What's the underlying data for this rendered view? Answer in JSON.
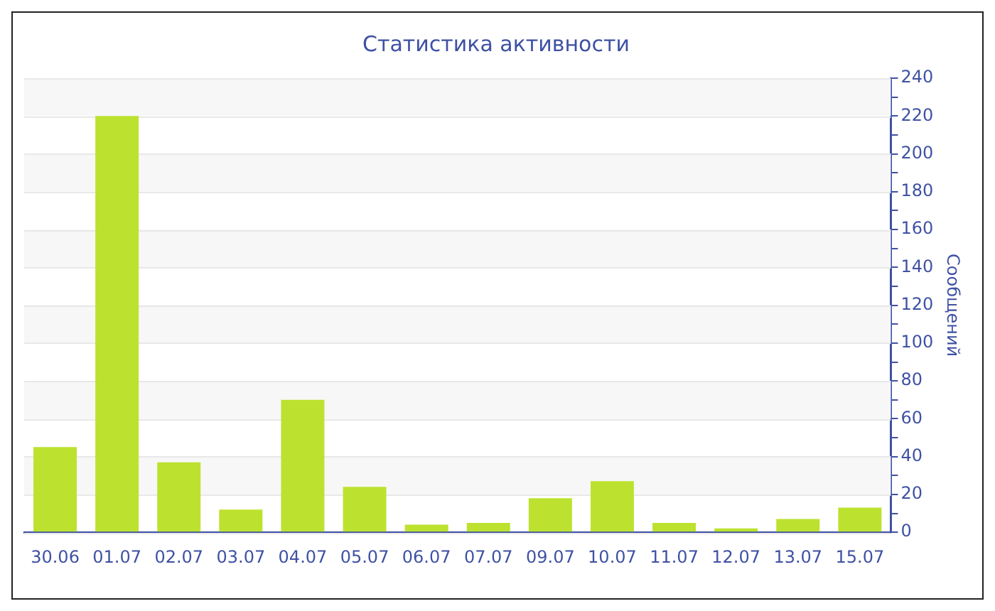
{
  "chart_data": {
    "type": "bar",
    "title": "Статистика активности",
    "ylabel": "Сообщений",
    "categories": [
      "30.06",
      "01.07",
      "02.07",
      "03.07",
      "04.07",
      "05.07",
      "06.07",
      "07.07",
      "09.07",
      "10.07",
      "11.07",
      "12.07",
      "13.07",
      "15.07"
    ],
    "values": [
      45,
      220,
      37,
      12,
      70,
      24,
      4,
      5,
      18,
      27,
      5,
      2,
      7,
      13
    ],
    "color": "#bce22f",
    "ylim": [
      0,
      240
    ],
    "yticks": [
      0,
      {
        "value": 10,
        "label": null
      },
      20,
      {
        "value": 30,
        "label": null
      },
      40,
      {
        "value": 50,
        "label": null
      },
      60,
      {
        "value": 70,
        "label": null
      },
      80,
      {
        "value": 90,
        "label": null
      },
      100,
      {
        "value": 110,
        "label": null
      },
      120,
      {
        "value": 130,
        "label": null
      },
      140,
      {
        "value": 150,
        "label": null
      },
      160,
      {
        "value": 170,
        "label": null
      },
      180,
      {
        "value": 190,
        "label": null
      },
      200,
      {
        "value": 210,
        "label": null
      },
      220,
      {
        "value": 230,
        "label": null
      },
      240
    ],
    "grid": "y"
  }
}
